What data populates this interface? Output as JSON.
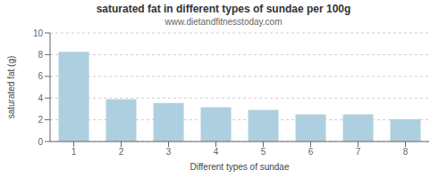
{
  "chart_data": {
    "type": "bar",
    "title": "saturated fat in different types of sundae per 100g",
    "subtitle": "www.dietandfitnesstoday.com",
    "xlabel": "Different types of sundae",
    "ylabel": "saturated fat (g)",
    "categories": [
      1,
      2,
      3,
      4,
      5,
      6,
      7,
      8
    ],
    "values": [
      8.25,
      3.9,
      3.55,
      3.15,
      2.9,
      2.5,
      2.5,
      2.05
    ],
    "color": "#aecfdf",
    "ylim": [
      0,
      10
    ],
    "yticks": [
      0,
      2,
      4,
      6,
      8,
      10
    ],
    "grid": true
  }
}
